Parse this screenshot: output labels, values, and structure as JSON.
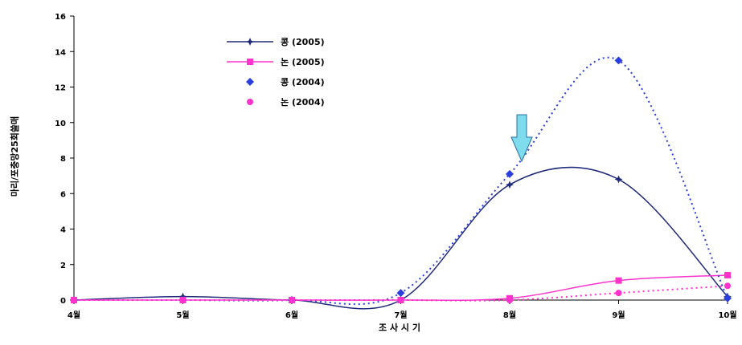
{
  "chart_data": {
    "type": "line",
    "title": "",
    "xlabel": "조 사 시 기",
    "ylabel": "마리/포충망25회쓸매",
    "categories": [
      "4월",
      "5월",
      "6월",
      "7월",
      "8월",
      "9월",
      "10월"
    ],
    "ylim": [
      0,
      16
    ],
    "yticks": [
      0,
      2,
      4,
      6,
      8,
      10,
      12,
      14,
      16
    ],
    "grid": false,
    "legend_position": "top-left inside",
    "series": [
      {
        "name": "콩 (2005)",
        "color": "#1f2a7a",
        "style": "solid",
        "marker": "star",
        "values": [
          0,
          0.2,
          0,
          0,
          6.5,
          6.8,
          0.2
        ]
      },
      {
        "name": "논 (2005)",
        "color": "#ff33cc",
        "style": "solid",
        "marker": "square",
        "values": [
          0,
          0,
          0,
          0,
          0.1,
          1.1,
          1.4
        ]
      },
      {
        "name": "콩 (2004)",
        "color": "#2b3fe0",
        "style": "dotted",
        "marker": "diamond",
        "values": [
          0,
          0,
          0,
          0.4,
          7.1,
          13.5,
          0.1
        ]
      },
      {
        "name": "논 (2004)",
        "color": "#ff33cc",
        "style": "dotted",
        "marker": "circle",
        "values": [
          0,
          0,
          0,
          0,
          0,
          0.4,
          0.8
        ]
      }
    ],
    "annotation": {
      "type": "arrow",
      "color": "#7fdcec",
      "points_to": "8월"
    }
  }
}
